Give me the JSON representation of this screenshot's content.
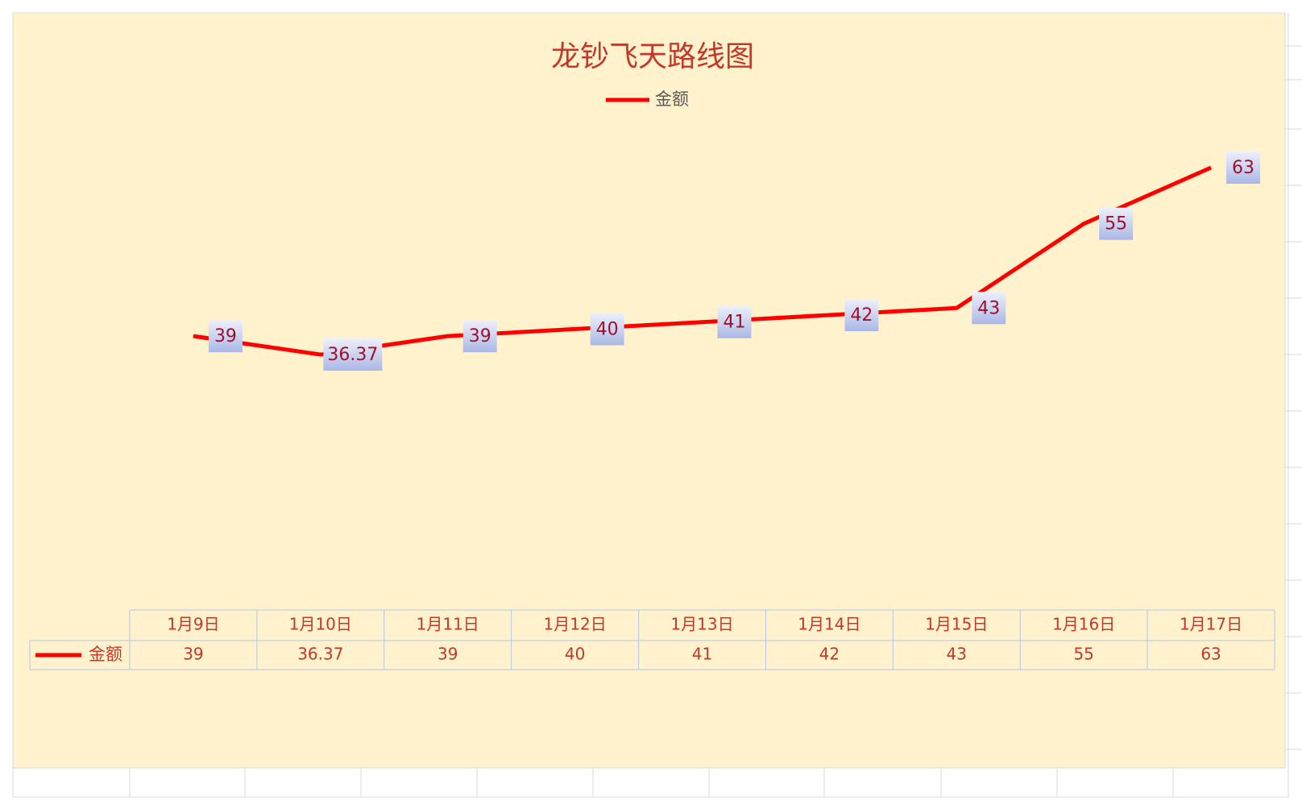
{
  "chart_data": {
    "type": "line",
    "title": "龙钞飞天路线图",
    "categories": [
      "1月9日",
      "1月10日",
      "1月11日",
      "1月12日",
      "1月13日",
      "1月14日",
      "1月15日",
      "1月16日",
      "1月17日"
    ],
    "series": [
      {
        "name": "金额",
        "color": "#ff0000",
        "values": [
          39,
          36.37,
          39,
          40,
          41,
          42,
          43,
          55,
          63
        ]
      }
    ],
    "ylim": [
      0,
      70
    ],
    "legend": "top",
    "data_table": true,
    "data_labels": true
  }
}
